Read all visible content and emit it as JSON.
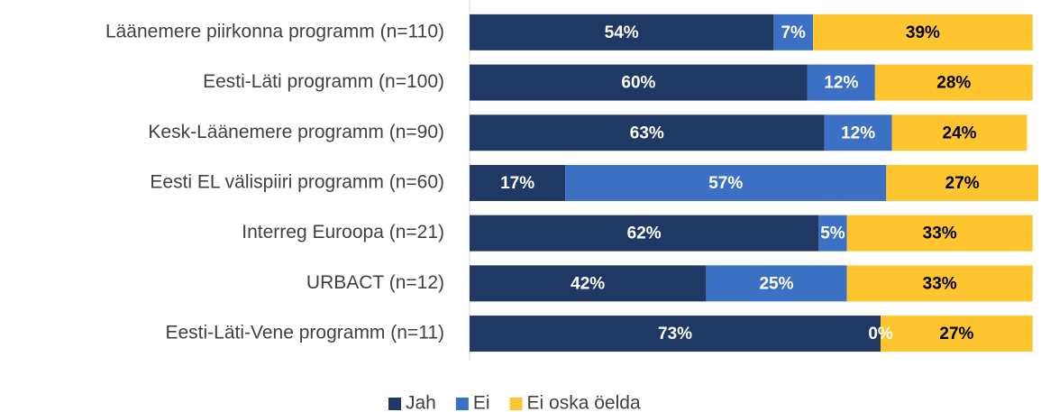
{
  "chart_data": {
    "type": "stacked_barh",
    "categories": [
      "Läänemere piirkonna programm (n=110)",
      "Eesti-Läti programm (n=100)",
      "Kesk-Läänemere programm (n=90)",
      "Eesti EL välispiiri programm (n=60)",
      "Interreg Euroopa (n=21)",
      "URBACT (n=12)",
      "Eesti-Läti-Vene programm (n=11)"
    ],
    "series": [
      {
        "name": "Jah",
        "color": "#203864",
        "values": [
          54,
          60,
          63,
          17,
          62,
          42,
          73
        ],
        "value_labels": [
          "54%",
          "60%",
          "63%",
          "17%",
          "62%",
          "42%",
          "73%"
        ]
      },
      {
        "name": "Ei",
        "color": "#3b70c4",
        "values": [
          7,
          12,
          12,
          57,
          5,
          25,
          0
        ],
        "value_labels": [
          "7%",
          "12%",
          "12%",
          "57%",
          "5%",
          "25%",
          "0%"
        ]
      },
      {
        "name": "Ei oska öelda",
        "color": "#fec52e",
        "values": [
          39,
          28,
          24,
          27,
          33,
          33,
          27
        ],
        "value_labels": [
          "39%",
          "28%",
          "24%",
          "27%",
          "33%",
          "33%",
          "27%"
        ]
      }
    ],
    "xlim": [
      0,
      101
    ],
    "legend": "bottom"
  }
}
